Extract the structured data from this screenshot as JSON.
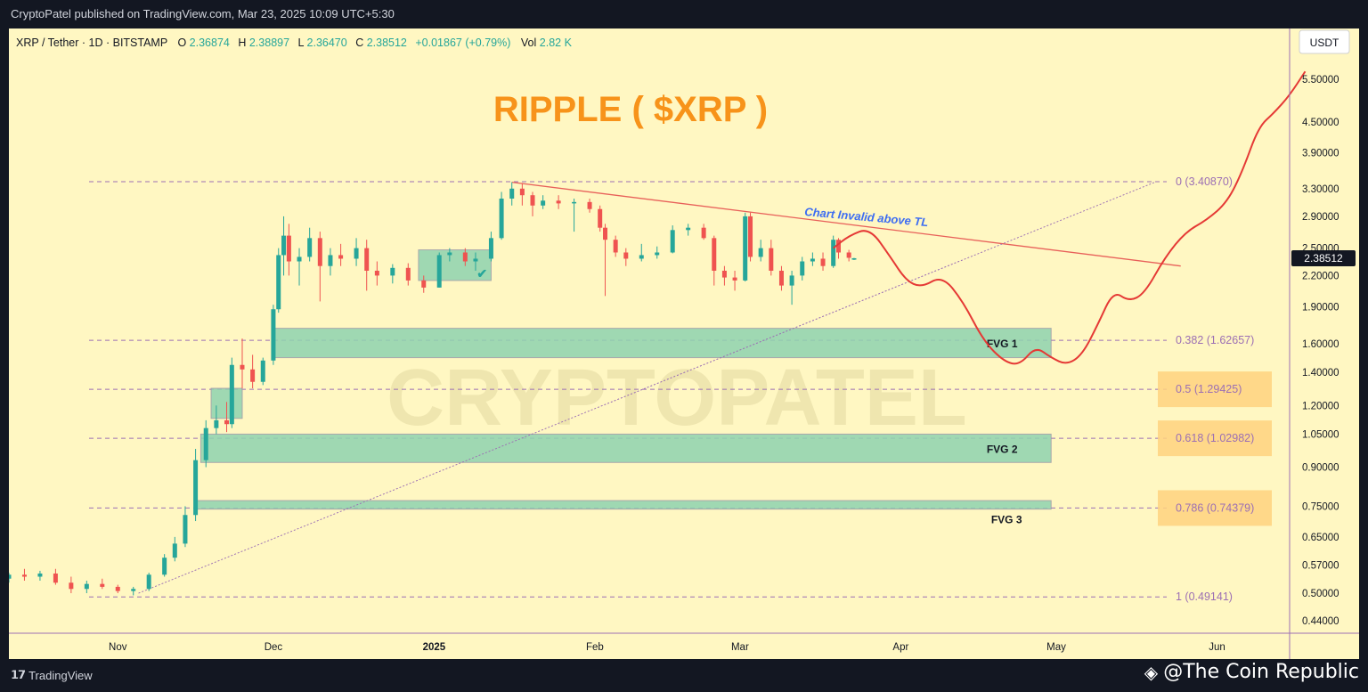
{
  "header": {
    "publisher_line": "CryptoPatel published on TradingView.com, Mar 23, 2025 10:09 UTC+5:30"
  },
  "legend": {
    "symbol": "XRP / Tether · 1D · BITSTAMP",
    "o_label": "O",
    "o_value": "2.36874",
    "h_label": "H",
    "h_value": "2.38897",
    "l_label": "L",
    "l_value": "2.36470",
    "c_label": "C",
    "c_value": "2.38512",
    "change": "+0.01867 (+0.79%)",
    "vol_label": "Vol",
    "vol_value": "2.82 K"
  },
  "currency_button": "USDT",
  "footer": {
    "logo_text": "TradingView",
    "credit": "@The Coin Republic"
  },
  "colors": {
    "background": "#fff7c2",
    "bull": "#26a69a",
    "bear": "#ef5350",
    "title": "#f7931a",
    "trendline": "#e8605a",
    "projection": "#e53935",
    "fib_line": "#9c6fb4",
    "fvg_fill": "#8fd3b0",
    "fib_box": "#ffd27f",
    "annotation": "#3d6df2"
  },
  "chart_data": {
    "type": "candlestick",
    "title": "RIPPLE ( $XRP )",
    "y_scale": "log",
    "ylim": [
      0.42,
      6.2
    ],
    "xlim": [
      "2024-10-11",
      "2025-06-15"
    ],
    "x_ticks": [
      {
        "date": "2024-11-01",
        "label": "Nov",
        "bold": false
      },
      {
        "date": "2024-12-01",
        "label": "Dec",
        "bold": false
      },
      {
        "date": "2025-01-01",
        "label": "2025",
        "bold": true
      },
      {
        "date": "2025-02-01",
        "label": "Feb",
        "bold": false
      },
      {
        "date": "2025-03-01",
        "label": "Mar",
        "bold": false
      },
      {
        "date": "2025-04-01",
        "label": "Apr",
        "bold": false
      },
      {
        "date": "2025-05-01",
        "label": "May",
        "bold": false
      },
      {
        "date": "2025-06-01",
        "label": "Jun",
        "bold": false
      }
    ],
    "y_ticks": [
      "5.50000",
      "4.50000",
      "3.90000",
      "3.30000",
      "2.90000",
      "2.50000",
      "2.20000",
      "1.90000",
      "1.60000",
      "1.40000",
      "1.20000",
      "1.05000",
      "0.90000",
      "0.75000",
      "0.65000",
      "0.57000",
      "0.50000",
      "0.44000"
    ],
    "last_price": "2.38512",
    "candles": [
      {
        "date": "2024-10-11",
        "o": 0.535,
        "h": 0.55,
        "l": 0.525,
        "c": 0.545
      },
      {
        "date": "2024-10-14",
        "o": 0.545,
        "h": 0.56,
        "l": 0.53,
        "c": 0.54
      },
      {
        "date": "2024-10-17",
        "o": 0.54,
        "h": 0.555,
        "l": 0.53,
        "c": 0.548
      },
      {
        "date": "2024-10-20",
        "o": 0.548,
        "h": 0.56,
        "l": 0.52,
        "c": 0.525
      },
      {
        "date": "2024-10-23",
        "o": 0.525,
        "h": 0.54,
        "l": 0.5,
        "c": 0.51
      },
      {
        "date": "2024-10-26",
        "o": 0.51,
        "h": 0.53,
        "l": 0.5,
        "c": 0.522
      },
      {
        "date": "2024-10-29",
        "o": 0.522,
        "h": 0.535,
        "l": 0.51,
        "c": 0.515
      },
      {
        "date": "2024-11-01",
        "o": 0.515,
        "h": 0.52,
        "l": 0.5,
        "c": 0.505
      },
      {
        "date": "2024-11-04",
        "o": 0.505,
        "h": 0.515,
        "l": 0.495,
        "c": 0.51
      },
      {
        "date": "2024-11-07",
        "o": 0.51,
        "h": 0.55,
        "l": 0.505,
        "c": 0.545
      },
      {
        "date": "2024-11-10",
        "o": 0.545,
        "h": 0.6,
        "l": 0.54,
        "c": 0.59
      },
      {
        "date": "2024-11-12",
        "o": 0.59,
        "h": 0.65,
        "l": 0.58,
        "c": 0.63
      },
      {
        "date": "2024-11-14",
        "o": 0.63,
        "h": 0.75,
        "l": 0.62,
        "c": 0.72
      },
      {
        "date": "2024-11-16",
        "o": 0.72,
        "h": 0.98,
        "l": 0.7,
        "c": 0.93
      },
      {
        "date": "2024-11-18",
        "o": 0.93,
        "h": 1.12,
        "l": 0.9,
        "c": 1.08
      },
      {
        "date": "2024-11-20",
        "o": 1.08,
        "h": 1.2,
        "l": 1.05,
        "c": 1.12
      },
      {
        "date": "2024-11-22",
        "o": 1.12,
        "h": 1.22,
        "l": 1.06,
        "c": 1.1
      },
      {
        "date": "2024-11-23",
        "o": 1.1,
        "h": 1.5,
        "l": 1.08,
        "c": 1.45
      },
      {
        "date": "2024-11-25",
        "o": 1.45,
        "h": 1.64,
        "l": 1.3,
        "c": 1.42
      },
      {
        "date": "2024-11-27",
        "o": 1.42,
        "h": 1.52,
        "l": 1.3,
        "c": 1.34
      },
      {
        "date": "2024-11-29",
        "o": 1.34,
        "h": 1.5,
        "l": 1.32,
        "c": 1.48
      },
      {
        "date": "2024-12-01",
        "o": 1.48,
        "h": 1.92,
        "l": 1.45,
        "c": 1.88
      },
      {
        "date": "2024-12-02",
        "o": 1.88,
        "h": 2.5,
        "l": 1.85,
        "c": 2.42
      },
      {
        "date": "2024-12-03",
        "o": 2.42,
        "h": 2.9,
        "l": 2.2,
        "c": 2.65
      },
      {
        "date": "2024-12-04",
        "o": 2.65,
        "h": 2.8,
        "l": 2.2,
        "c": 2.35
      },
      {
        "date": "2024-12-06",
        "o": 2.35,
        "h": 2.5,
        "l": 2.1,
        "c": 2.4
      },
      {
        "date": "2024-12-08",
        "o": 2.4,
        "h": 2.75,
        "l": 2.35,
        "c": 2.62
      },
      {
        "date": "2024-12-10",
        "o": 2.62,
        "h": 2.7,
        "l": 1.95,
        "c": 2.3
      },
      {
        "date": "2024-12-12",
        "o": 2.3,
        "h": 2.5,
        "l": 2.2,
        "c": 2.42
      },
      {
        "date": "2024-12-14",
        "o": 2.42,
        "h": 2.55,
        "l": 2.3,
        "c": 2.38
      },
      {
        "date": "2024-12-17",
        "o": 2.38,
        "h": 2.62,
        "l": 2.3,
        "c": 2.5
      },
      {
        "date": "2024-12-19",
        "o": 2.5,
        "h": 2.6,
        "l": 2.05,
        "c": 2.25
      },
      {
        "date": "2024-12-21",
        "o": 2.25,
        "h": 2.35,
        "l": 2.1,
        "c": 2.2
      },
      {
        "date": "2024-12-24",
        "o": 2.2,
        "h": 2.32,
        "l": 2.12,
        "c": 2.28
      },
      {
        "date": "2024-12-27",
        "o": 2.28,
        "h": 2.33,
        "l": 2.1,
        "c": 2.15
      },
      {
        "date": "2024-12-30",
        "o": 2.15,
        "h": 2.2,
        "l": 2.03,
        "c": 2.08
      },
      {
        "date": "2025-01-02",
        "o": 2.08,
        "h": 2.45,
        "l": 2.08,
        "c": 2.42
      },
      {
        "date": "2025-01-04",
        "o": 2.42,
        "h": 2.5,
        "l": 2.35,
        "c": 2.45
      },
      {
        "date": "2025-01-07",
        "o": 2.45,
        "h": 2.5,
        "l": 2.3,
        "c": 2.35
      },
      {
        "date": "2025-01-09",
        "o": 2.35,
        "h": 2.45,
        "l": 2.25,
        "c": 2.38
      },
      {
        "date": "2025-01-12",
        "o": 2.38,
        "h": 2.7,
        "l": 2.35,
        "c": 2.62
      },
      {
        "date": "2025-01-14",
        "o": 2.62,
        "h": 3.25,
        "l": 2.6,
        "c": 3.15
      },
      {
        "date": "2025-01-16",
        "o": 3.15,
        "h": 3.4,
        "l": 3.05,
        "c": 3.3
      },
      {
        "date": "2025-01-18",
        "o": 3.3,
        "h": 3.38,
        "l": 3.05,
        "c": 3.2
      },
      {
        "date": "2025-01-20",
        "o": 3.2,
        "h": 3.25,
        "l": 2.9,
        "c": 3.05
      },
      {
        "date": "2025-01-22",
        "o": 3.05,
        "h": 3.2,
        "l": 3.0,
        "c": 3.12
      },
      {
        "date": "2025-01-25",
        "o": 3.12,
        "h": 3.2,
        "l": 3.0,
        "c": 3.08
      },
      {
        "date": "2025-01-28",
        "o": 3.08,
        "h": 3.15,
        "l": 2.7,
        "c": 3.1
      },
      {
        "date": "2025-01-31",
        "o": 3.1,
        "h": 3.15,
        "l": 2.95,
        "c": 3.0
      },
      {
        "date": "2025-02-02",
        "o": 3.0,
        "h": 3.05,
        "l": 2.7,
        "c": 2.75
      },
      {
        "date": "2025-02-03",
        "o": 2.75,
        "h": 2.8,
        "l": 2.0,
        "c": 2.6
      },
      {
        "date": "2025-02-05",
        "o": 2.6,
        "h": 2.65,
        "l": 2.4,
        "c": 2.45
      },
      {
        "date": "2025-02-07",
        "o": 2.45,
        "h": 2.5,
        "l": 2.3,
        "c": 2.38
      },
      {
        "date": "2025-02-10",
        "o": 2.38,
        "h": 2.55,
        "l": 2.35,
        "c": 2.42
      },
      {
        "date": "2025-02-13",
        "o": 2.42,
        "h": 2.52,
        "l": 2.38,
        "c": 2.45
      },
      {
        "date": "2025-02-16",
        "o": 2.45,
        "h": 2.78,
        "l": 2.44,
        "c": 2.72
      },
      {
        "date": "2025-02-19",
        "o": 2.72,
        "h": 2.8,
        "l": 2.65,
        "c": 2.75
      },
      {
        "date": "2025-02-22",
        "o": 2.75,
        "h": 2.8,
        "l": 2.6,
        "c": 2.62
      },
      {
        "date": "2025-02-24",
        "o": 2.62,
        "h": 2.65,
        "l": 2.1,
        "c": 2.25
      },
      {
        "date": "2025-02-26",
        "o": 2.25,
        "h": 2.3,
        "l": 2.1,
        "c": 2.18
      },
      {
        "date": "2025-02-28",
        "o": 2.18,
        "h": 2.25,
        "l": 2.05,
        "c": 2.15
      },
      {
        "date": "2025-03-02",
        "o": 2.15,
        "h": 2.95,
        "l": 2.14,
        "c": 2.9
      },
      {
        "date": "2025-03-03",
        "o": 2.9,
        "h": 2.95,
        "l": 2.35,
        "c": 2.4
      },
      {
        "date": "2025-03-05",
        "o": 2.4,
        "h": 2.6,
        "l": 2.35,
        "c": 2.5
      },
      {
        "date": "2025-03-07",
        "o": 2.5,
        "h": 2.6,
        "l": 2.2,
        "c": 2.25
      },
      {
        "date": "2025-03-09",
        "o": 2.25,
        "h": 2.3,
        "l": 2.05,
        "c": 2.1
      },
      {
        "date": "2025-03-11",
        "o": 2.1,
        "h": 2.25,
        "l": 1.92,
        "c": 2.2
      },
      {
        "date": "2025-03-13",
        "o": 2.2,
        "h": 2.4,
        "l": 2.15,
        "c": 2.35
      },
      {
        "date": "2025-03-15",
        "o": 2.35,
        "h": 2.45,
        "l": 2.3,
        "c": 2.38
      },
      {
        "date": "2025-03-17",
        "o": 2.38,
        "h": 2.45,
        "l": 2.25,
        "c": 2.3
      },
      {
        "date": "2025-03-19",
        "o": 2.3,
        "h": 2.65,
        "l": 2.28,
        "c": 2.6
      },
      {
        "date": "2025-03-20",
        "o": 2.6,
        "h": 2.62,
        "l": 2.38,
        "c": 2.45
      },
      {
        "date": "2025-03-22",
        "o": 2.45,
        "h": 2.48,
        "l": 2.35,
        "c": 2.39
      },
      {
        "date": "2025-03-23",
        "o": 2.369,
        "h": 2.389,
        "l": 2.365,
        "c": 2.385
      }
    ],
    "fib_levels": [
      {
        "ratio": "0",
        "price": 3.4087,
        "label": "0 (3.40870)",
        "boxed": false
      },
      {
        "ratio": "0.382",
        "price": 1.62657,
        "label": "0.382 (1.62657)",
        "boxed": false
      },
      {
        "ratio": "0.5",
        "price": 1.29425,
        "label": "0.5 (1.29425)",
        "boxed": true
      },
      {
        "ratio": "0.618",
        "price": 1.02982,
        "label": "0.618 (1.02982)",
        "boxed": true
      },
      {
        "ratio": "0.786",
        "price": 0.74379,
        "label": "0.786 (0.74379)",
        "boxed": true
      },
      {
        "ratio": "1",
        "price": 0.49141,
        "label": "1 (0.49141)",
        "boxed": false
      }
    ],
    "fvg_zones": [
      {
        "label": "FVG 1",
        "from": "2024-12-01",
        "to": "2025-04-30",
        "low": 1.5,
        "high": 1.72
      },
      {
        "label": "FVG 2",
        "from": "2024-11-17",
        "to": "2025-04-30",
        "low": 0.92,
        "high": 1.05
      },
      {
        "label": "FVG 3",
        "from": "2024-11-16",
        "to": "2025-04-30",
        "low": 0.74,
        "high": 0.77
      }
    ],
    "small_zones": [
      {
        "from": "2024-11-19",
        "to": "2024-11-25",
        "low": 1.13,
        "high": 1.3
      },
      {
        "from": "2024-12-29",
        "to": "2025-01-12",
        "low": 2.15,
        "high": 2.48
      }
    ],
    "trendline_resistance": [
      {
        "date": "2025-01-16",
        "price": 3.4
      },
      {
        "date": "2025-05-25",
        "price": 2.3
      }
    ],
    "trendline_support": [
      {
        "date": "2024-11-05",
        "price": 0.5
      },
      {
        "date": "2025-05-20",
        "price": 3.4
      }
    ],
    "annotation": "Chart Invalid above TL",
    "projection_path": [
      {
        "date": "2025-03-19",
        "price": 2.5
      },
      {
        "date": "2025-03-22",
        "price": 2.65
      },
      {
        "date": "2025-03-26",
        "price": 2.75
      },
      {
        "date": "2025-03-30",
        "price": 2.4
      },
      {
        "date": "2025-04-02",
        "price": 2.15
      },
      {
        "date": "2025-04-05",
        "price": 2.08
      },
      {
        "date": "2025-04-09",
        "price": 2.2
      },
      {
        "date": "2025-04-13",
        "price": 1.95
      },
      {
        "date": "2025-04-17",
        "price": 1.62
      },
      {
        "date": "2025-04-21",
        "price": 1.47
      },
      {
        "date": "2025-04-24",
        "price": 1.45
      },
      {
        "date": "2025-04-27",
        "price": 1.58
      },
      {
        "date": "2025-04-30",
        "price": 1.5
      },
      {
        "date": "2025-05-03",
        "price": 1.45
      },
      {
        "date": "2025-05-06",
        "price": 1.52
      },
      {
        "date": "2025-05-09",
        "price": 1.75
      },
      {
        "date": "2025-05-12",
        "price": 2.05
      },
      {
        "date": "2025-05-15",
        "price": 1.95
      },
      {
        "date": "2025-05-18",
        "price": 2.02
      },
      {
        "date": "2025-05-22",
        "price": 2.4
      },
      {
        "date": "2025-05-26",
        "price": 2.7
      },
      {
        "date": "2025-05-30",
        "price": 2.85
      },
      {
        "date": "2025-06-03",
        "price": 3.1
      },
      {
        "date": "2025-06-06",
        "price": 3.6
      },
      {
        "date": "2025-06-09",
        "price": 4.4
      },
      {
        "date": "2025-06-12",
        "price": 4.7
      },
      {
        "date": "2025-06-15",
        "price": 5.1
      },
      {
        "date": "2025-06-18",
        "price": 5.7
      }
    ],
    "watermark": "CRYPTOPATEL"
  }
}
